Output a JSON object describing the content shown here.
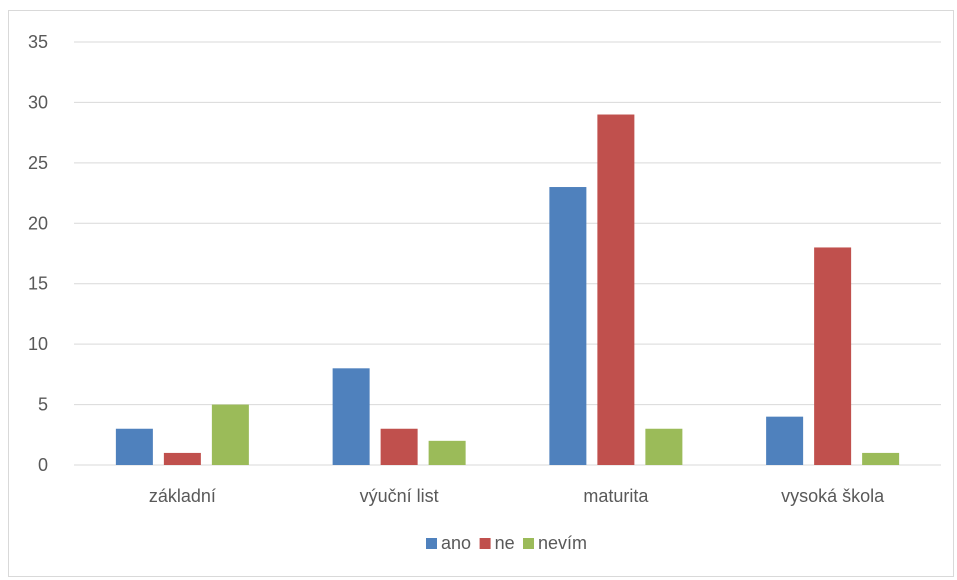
{
  "chart_data": {
    "type": "bar",
    "title": "",
    "xlabel": "",
    "ylabel": "",
    "categories": [
      "základní",
      "výuční list",
      "maturita",
      "vysoká škola"
    ],
    "series": [
      {
        "name": "ano",
        "values": [
          3,
          8,
          23,
          4
        ],
        "color": "#4f81bd"
      },
      {
        "name": "ne",
        "values": [
          1,
          3,
          29,
          18
        ],
        "color": "#c0504d"
      },
      {
        "name": "nevím",
        "values": [
          5,
          2,
          3,
          1
        ],
        "color": "#9bbb59"
      }
    ],
    "ylim": [
      0,
      35
    ],
    "yticks": [
      0,
      5,
      10,
      15,
      20,
      25,
      30,
      35
    ],
    "grid": true,
    "legend_position": "bottom"
  }
}
